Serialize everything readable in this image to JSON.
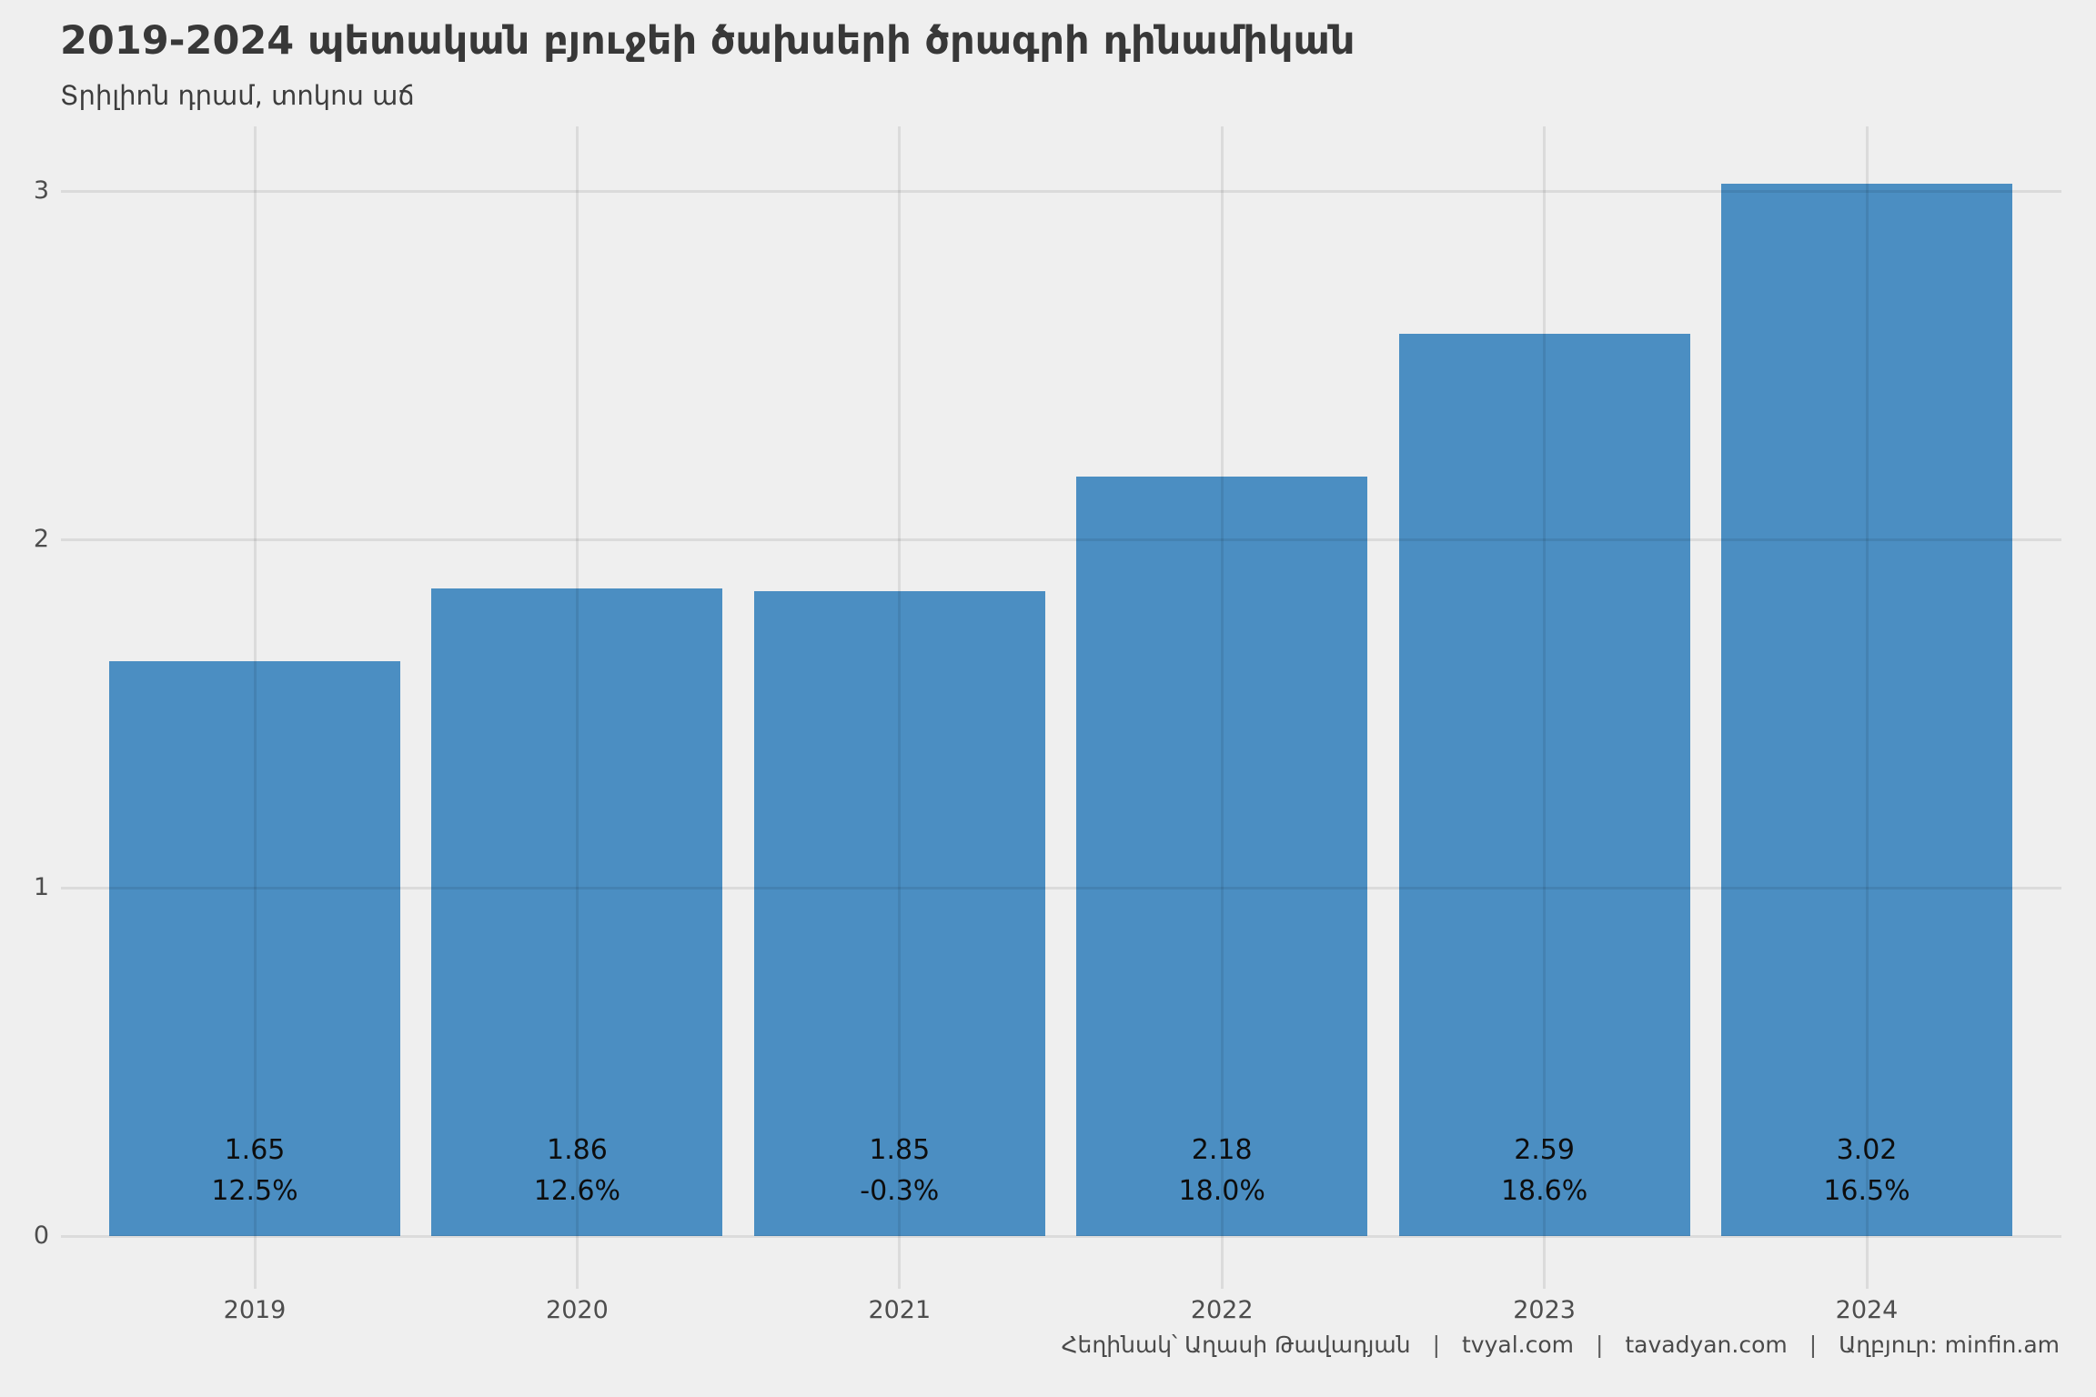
{
  "header": {
    "title": "2019-2024 պետական բյուջեի ծախսերի ծրագրի դինամիկան",
    "subtitle": "Տրիլիոն դրամ, տոկոս աճ"
  },
  "chart_data": {
    "type": "bar",
    "title": "2019-2024 պետական բյուջեի ծախսերի ծրագրի դինամիկան",
    "subtitle": "Տրիլիոն դրամ, տոկոս աճ",
    "categories": [
      "2019",
      "2020",
      "2021",
      "2022",
      "2023",
      "2024"
    ],
    "values": [
      1.65,
      1.86,
      1.85,
      2.18,
      2.59,
      3.02
    ],
    "value_labels": [
      "1.65",
      "1.86",
      "1.85",
      "2.18",
      "2.59",
      "3.02"
    ],
    "growth_labels": [
      "12.5%",
      "12.6%",
      "-0.3%",
      "18.0%",
      "18.6%",
      "16.5%"
    ],
    "xlabel": "",
    "ylabel": "",
    "y_ticks": [
      0,
      1,
      2,
      3
    ],
    "ylim": [
      0,
      3.2
    ],
    "grid": true,
    "legend": false,
    "bar_color": "#4B8EC2",
    "background_color": "#EFEFEF",
    "units": "trillion dram, percent growth"
  },
  "footer": {
    "author": "Հեղինակ՝ Աղասի Թավադյան",
    "site1": "tvyal.com",
    "site2": "tavadyan.com",
    "source": "Աղբյուր: minfin.am",
    "separator": "|"
  }
}
